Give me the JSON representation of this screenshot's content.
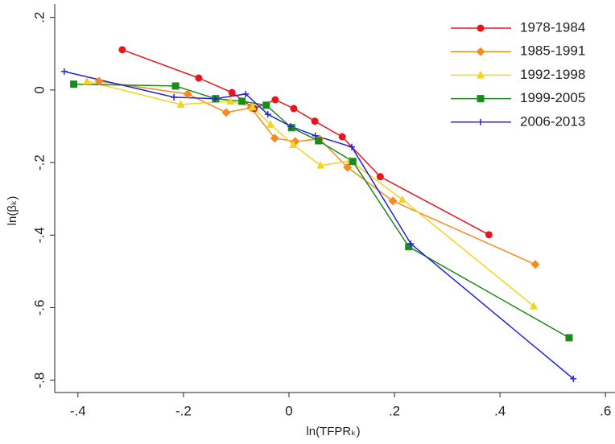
{
  "chart_data": {
    "type": "line",
    "x_label": "ln(TFPRₖ)",
    "y_label": "ln(βₖ)",
    "xlim": [
      -0.444,
      0.618
    ],
    "ylim": [
      -0.834,
      0.237
    ],
    "xticks": [
      {
        "value": -0.4,
        "label": "-.4"
      },
      {
        "value": -0.2,
        "label": "-.2"
      },
      0,
      {
        "value": 0.2,
        "label": ".2"
      },
      {
        "value": 0.4,
        "label": ".4"
      },
      {
        "value": 0.6,
        "label": ".6"
      }
    ],
    "yticks": [
      {
        "value": 0.2,
        "label": ".2"
      },
      0,
      {
        "value": -0.2,
        "label": "-.2"
      },
      {
        "value": -0.4,
        "label": "-.4"
      },
      {
        "value": -0.6,
        "label": "-.6"
      },
      {
        "value": -0.8,
        "label": "-.8"
      }
    ],
    "grid": false,
    "legend": "top-right",
    "series": [
      {
        "name": "1978-1984",
        "color": "#e8161c",
        "marker": "circle",
        "x": [
          -0.316,
          -0.171,
          -0.108,
          -0.066,
          -0.026,
          0.009,
          0.049,
          0.101,
          0.173,
          0.379
        ],
        "values": [
          0.111,
          0.033,
          -0.007,
          -0.051,
          -0.027,
          -0.051,
          -0.086,
          -0.129,
          -0.239,
          -0.399
        ]
      },
      {
        "name": "1985-1991",
        "color": "#f58a1f",
        "marker": "diamond",
        "x": [
          -0.36,
          -0.192,
          -0.119,
          -0.072,
          -0.027,
          0.012,
          0.058,
          0.111,
          0.197,
          0.467
        ],
        "values": [
          0.024,
          -0.011,
          -0.062,
          -0.049,
          -0.133,
          -0.142,
          -0.135,
          -0.213,
          -0.306,
          -0.481
        ]
      },
      {
        "name": "1992-1998",
        "color": "#f5d21c",
        "marker": "triangle",
        "x": [
          -0.383,
          -0.205,
          -0.111,
          -0.069,
          -0.035,
          0.008,
          0.06,
          0.116,
          0.215,
          0.464
        ],
        "values": [
          0.024,
          -0.04,
          -0.031,
          -0.047,
          -0.095,
          -0.151,
          -0.208,
          -0.195,
          -0.302,
          -0.596
        ]
      },
      {
        "name": "1999-2005",
        "color": "#1c8a1c",
        "marker": "square",
        "x": [
          -0.408,
          -0.215,
          -0.139,
          -0.089,
          -0.043,
          0.005,
          0.056,
          0.121,
          0.227,
          0.531
        ],
        "values": [
          0.016,
          0.011,
          -0.024,
          -0.031,
          -0.042,
          -0.104,
          -0.14,
          -0.197,
          -0.432,
          -0.683
        ]
      },
      {
        "name": "2006-2013",
        "color": "#2424d4",
        "marker": "plus",
        "x": [
          -0.426,
          -0.218,
          -0.14,
          -0.082,
          -0.04,
          0.003,
          0.05,
          0.119,
          0.231,
          0.539
        ],
        "values": [
          0.051,
          -0.02,
          -0.024,
          -0.011,
          -0.067,
          -0.1,
          -0.126,
          -0.157,
          -0.424,
          -0.796
        ]
      }
    ]
  }
}
